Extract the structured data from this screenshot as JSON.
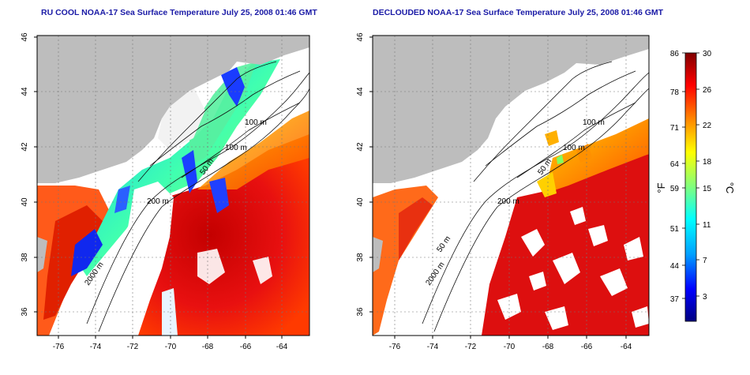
{
  "panels": [
    {
      "title": "RU COOL NOAA-17 Sea Surface Temperature July 25, 2008 01:46 GMT",
      "mode": "raw",
      "contour_labels": [
        "100 m",
        "100 m",
        "50 m",
        "200 m",
        "2000 m"
      ]
    },
    {
      "title": "DECLOUDED NOAA-17 Sea Surface Temperature July 25, 2008 01:46 GMT",
      "mode": "declouded",
      "contour_labels": [
        "100 m",
        "100 m",
        "50 m",
        "200 m",
        "50 m",
        "2000 m"
      ]
    }
  ],
  "axes": {
    "lat_ticks": [
      "46",
      "44",
      "42",
      "40",
      "38",
      "36"
    ],
    "lon_ticks": [
      "-76",
      "-74",
      "-72",
      "-70",
      "-68",
      "-66",
      "-64"
    ]
  },
  "colorbar": {
    "fahrenheit_unit": "°F",
    "celsius_unit": "°C",
    "fahrenheit_ticks": [
      "86",
      "78",
      "71",
      "64",
      "59",
      "51",
      "44",
      "37"
    ],
    "celsius_ticks": [
      "30",
      "26",
      "22",
      "18",
      "15",
      "11",
      "7",
      "3"
    ],
    "colors": [
      "#000080",
      "#0000ff",
      "#00a0ff",
      "#00ffff",
      "#7fff7f",
      "#ffff00",
      "#ff8000",
      "#ff0000",
      "#800000"
    ]
  },
  "colors": {
    "land": "#bdbdbd",
    "cloud": "#ffffff",
    "frame": "#000000"
  }
}
